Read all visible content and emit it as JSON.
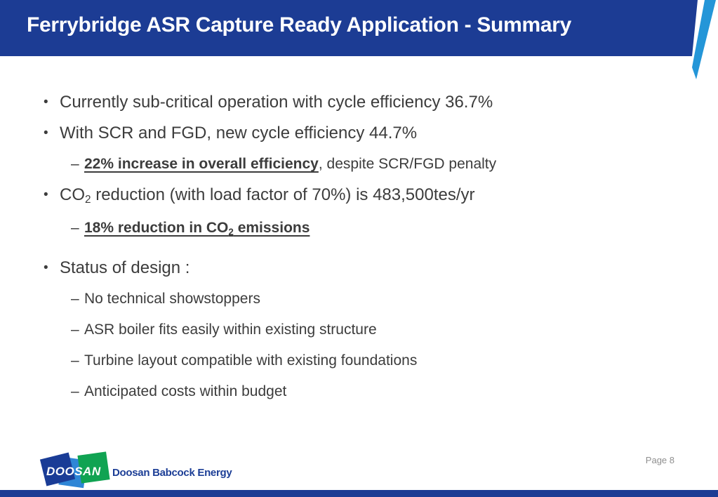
{
  "header": {
    "title": "Ferrybridge ASR Capture Ready Application - Summary"
  },
  "content": {
    "l1_marker": "•",
    "l2_marker": "–",
    "bullets": [
      {
        "level": 1,
        "segments": [
          {
            "text": "Currently sub-critical operation with cycle efficiency 36.7%"
          }
        ]
      },
      {
        "level": 1,
        "segments": [
          {
            "text": "With SCR and FGD, new cycle efficiency 44.7%"
          }
        ]
      },
      {
        "level": 2,
        "segments": [
          {
            "text": "22% increase in overall efficiency",
            "bold": true,
            "underline": true
          },
          {
            "text": ", despite SCR/FGD penalty"
          }
        ]
      },
      {
        "level": 1,
        "segments": [
          {
            "text": "CO"
          },
          {
            "text": "2",
            "subscript": true
          },
          {
            "text": " reduction (with load factor of 70%) is 483,500tes/yr"
          }
        ]
      },
      {
        "level": 2,
        "segments": [
          {
            "text": "18% reduction in CO",
            "bold": true,
            "underline": true
          },
          {
            "text": "2",
            "bold": true,
            "underline": true,
            "subscript": true
          },
          {
            "text": " emissions",
            "bold": true,
            "underline": true
          }
        ]
      },
      {
        "level": 1,
        "extra_gap": true,
        "segments": [
          {
            "text": "Status of design :"
          }
        ]
      },
      {
        "level": 2,
        "segments": [
          {
            "text": "No technical showstoppers"
          }
        ]
      },
      {
        "level": 2,
        "segments": [
          {
            "text": "ASR boiler fits easily within existing structure"
          }
        ]
      },
      {
        "level": 2,
        "segments": [
          {
            "text": "Turbine layout compatible with existing foundations"
          }
        ]
      },
      {
        "level": 2,
        "segments": [
          {
            "text": "Anticipated costs within budget"
          }
        ]
      }
    ]
  },
  "footer": {
    "logo_text": "DOOSAN",
    "brand": "Doosan Babcock Energy",
    "page_label": "Page 8"
  },
  "colors": {
    "header_navy": "#1c3c94",
    "accent_blue": "#2496d8",
    "body_text": "#3c3c3c",
    "page_gray": "#8f8f8f",
    "logo_navy": "#1a3c96",
    "logo_blue": "#2e86d6",
    "logo_green": "#10a352"
  }
}
